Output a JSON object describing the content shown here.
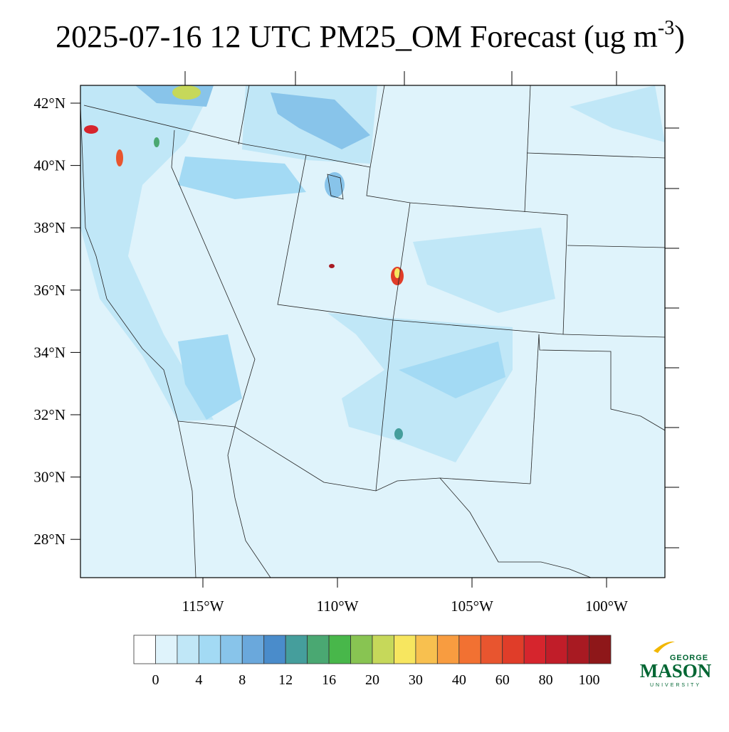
{
  "header": {
    "title": "2025-07-16 12 UTC PM25_OM Forecast (ug m",
    "title_superscript": "-3",
    "title_end": ")"
  },
  "map": {
    "lat_labels": [
      "42°N",
      "40°N",
      "38°N",
      "36°N",
      "34°N",
      "32°N",
      "30°N",
      "28°N"
    ],
    "lon_labels": [
      "115°W",
      "110°W",
      "105°W",
      "100°W"
    ]
  },
  "colorbar": {
    "colors": [
      "#ffffff",
      "#dff3fb",
      "#c0e7f7",
      "#a3daf4",
      "#88c4ea",
      "#6aa8dc",
      "#4a8ccb",
      "#459e9c",
      "#4aa872",
      "#48b74a",
      "#88c452",
      "#c6d85a",
      "#f7e65f",
      "#f8c04f",
      "#f89c40",
      "#f27132",
      "#e8552f",
      "#e03d29",
      "#d6252d",
      "#c11d29",
      "#a81a22",
      "#8e1719"
    ],
    "labels": [
      "0",
      "4",
      "8",
      "12",
      "16",
      "20",
      "30",
      "40",
      "60",
      "80",
      "100"
    ]
  },
  "logo": {
    "top": "GEORGE",
    "main": "MASON",
    "bottom": "UNIVERSITY"
  }
}
